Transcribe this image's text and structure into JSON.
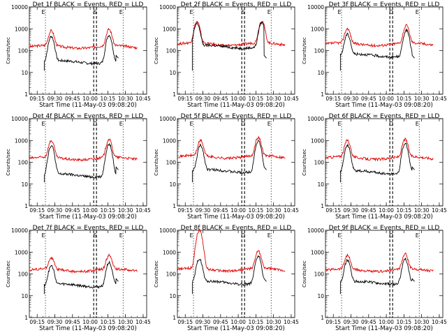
{
  "common": {
    "ylabel": "Counts/sec",
    "xlabel": "Start Time (11-May-03 09:08:20)",
    "x_ticks": [
      "09:15",
      "09:30",
      "09:45",
      "10:00",
      "10:15",
      "10:30",
      "10:45"
    ],
    "y_ticks": [
      "1",
      "10",
      "100",
      "1000",
      "10000"
    ],
    "black_series": "Events",
    "red_series": "LLD",
    "colors": {
      "events": "#000000",
      "lld": "#e00000"
    }
  },
  "chart_data": [
    {
      "type": "line",
      "title": "Det 1f BLACK = Events, RED = LLD",
      "markers": [
        "E",
        "S",
        "E"
      ],
      "xlim": [
        "09:08:20",
        "10:48"
      ],
      "ylim": [
        1,
        10000
      ],
      "yscale": "log",
      "series": [
        {
          "name": "Events",
          "peaks": [
            {
              "x": "09:27",
              "y": 420
            },
            {
              "x": "10:16",
              "y": 480
            }
          ],
          "baseline": 30
        },
        {
          "name": "LLD",
          "peaks": [
            {
              "x": "09:27",
              "y": 650
            },
            {
              "x": "10:16",
              "y": 780
            }
          ],
          "baseline": 150
        }
      ]
    },
    {
      "type": "line",
      "title": "Det 2f BLACK = Events, RED = LLD",
      "markers": [
        "E",
        "S",
        "E"
      ],
      "xlim": [
        "09:08:20",
        "10:48"
      ],
      "ylim": [
        1,
        10000
      ],
      "yscale": "log",
      "series": [
        {
          "name": "Events",
          "peaks": [
            {
              "x": "09:25",
              "y": 1600
            },
            {
              "x": "10:20",
              "y": 1800
            }
          ],
          "baseline": 150
        },
        {
          "name": "LLD",
          "peaks": [
            {
              "x": "09:25",
              "y": 1900
            },
            {
              "x": "10:20",
              "y": 2100
            }
          ],
          "baseline": 200
        }
      ]
    },
    {
      "type": "line",
      "title": "Det 3f BLACK = Events, RED = LLD",
      "markers": [
        "E",
        "D",
        "E"
      ],
      "xlim": [
        "09:08:20",
        "10:48"
      ],
      "ylim": [
        1,
        10000
      ],
      "yscale": "log",
      "series": [
        {
          "name": "Events",
          "peaks": [
            {
              "x": "09:27",
              "y": 500
            },
            {
              "x": "10:17",
              "y": 800
            }
          ],
          "baseline": 60
        },
        {
          "name": "LLD",
          "peaks": [
            {
              "x": "09:27",
              "y": 800
            },
            {
              "x": "10:17",
              "y": 1200
            }
          ],
          "baseline": 200
        }
      ]
    },
    {
      "type": "line",
      "title": "Det 4f BLACK = Events, RED = LLD",
      "markers": [
        "E",
        "D",
        "E"
      ],
      "xlim": [
        "09:08:20",
        "10:48"
      ],
      "ylim": [
        1,
        10000
      ],
      "yscale": "log",
      "series": [
        {
          "name": "Events",
          "peaks": [
            {
              "x": "09:27",
              "y": 550
            },
            {
              "x": "10:16",
              "y": 650
            }
          ],
          "baseline": 25
        },
        {
          "name": "LLD",
          "peaks": [
            {
              "x": "09:27",
              "y": 800
            },
            {
              "x": "10:16",
              "y": 950
            }
          ],
          "baseline": 150
        }
      ]
    },
    {
      "type": "line",
      "title": "Det 5f BLACK = Events, RED = LLD",
      "markers": [
        "E",
        "D",
        "E"
      ],
      "xlim": [
        "09:08:20",
        "10:48"
      ],
      "ylim": [
        1,
        10000
      ],
      "yscale": "log",
      "series": [
        {
          "name": "Events",
          "peaks": [
            {
              "x": "09:28",
              "y": 550
            },
            {
              "x": "10:17",
              "y": 900
            }
          ],
          "baseline": 40
        },
        {
          "name": "LLD",
          "peaks": [
            {
              "x": "09:28",
              "y": 800
            },
            {
              "x": "10:17",
              "y": 1200
            }
          ],
          "baseline": 180
        }
      ]
    },
    {
      "type": "line",
      "title": "Det 6f BLACK = Events, RED = LLD",
      "markers": [
        "E",
        "D",
        "E"
      ],
      "xlim": [
        "09:08:20",
        "10:48"
      ],
      "ylim": [
        1,
        10000
      ],
      "yscale": "log",
      "series": [
        {
          "name": "Events",
          "peaks": [
            {
              "x": "09:27",
              "y": 550
            },
            {
              "x": "10:16",
              "y": 700
            }
          ],
          "baseline": 35
        },
        {
          "name": "LLD",
          "peaks": [
            {
              "x": "09:27",
              "y": 850
            },
            {
              "x": "10:16",
              "y": 950
            }
          ],
          "baseline": 160
        }
      ]
    },
    {
      "type": "line",
      "title": "Det 7f BLACK = Events, RED = LLD",
      "markers": [
        "E",
        "S",
        "E"
      ],
      "xlim": [
        "09:08:20",
        "10:48"
      ],
      "ylim": [
        1,
        10000
      ],
      "yscale": "log",
      "series": [
        {
          "name": "Events",
          "peaks": [
            {
              "x": "09:27",
              "y": 200
            },
            {
              "x": "10:16",
              "y": 300
            }
          ],
          "baseline": 30
        },
        {
          "name": "LLD",
          "peaks": [
            {
              "x": "09:27",
              "y": 380
            },
            {
              "x": "10:16",
              "y": 550
            }
          ],
          "baseline": 150
        }
      ]
    },
    {
      "type": "line",
      "title": "Det 8f BLACK = Events, RED = LLD",
      "markers": [
        "E",
        "D",
        "E"
      ],
      "xlim": [
        "09:08:20",
        "10:48"
      ],
      "ylim": [
        1,
        10000
      ],
      "yscale": "log",
      "series": [
        {
          "name": "Events",
          "peaks": [
            {
              "x": "09:27",
              "y": 450
            },
            {
              "x": "10:17",
              "y": 600
            }
          ],
          "baseline": 40
        },
        {
          "name": "LLD",
          "peaks": [
            {
              "x": "09:27",
              "y": 10000
            },
            {
              "x": "10:17",
              "y": 950
            }
          ],
          "baseline": 160
        }
      ]
    },
    {
      "type": "line",
      "title": "Det 9f BLACK = Events, RED = LLD",
      "markers": [
        "E",
        "D",
        "E"
      ],
      "xlim": [
        "09:08:20",
        "10:48"
      ],
      "ylim": [
        1,
        10000
      ],
      "yscale": "log",
      "series": [
        {
          "name": "Events",
          "peaks": [
            {
              "x": "09:27",
              "y": 380
            },
            {
              "x": "10:16",
              "y": 450
            }
          ],
          "baseline": 40
        },
        {
          "name": "LLD",
          "peaks": [
            {
              "x": "09:27",
              "y": 550
            },
            {
              "x": "10:16",
              "y": 650
            }
          ],
          "baseline": 150
        }
      ]
    }
  ]
}
